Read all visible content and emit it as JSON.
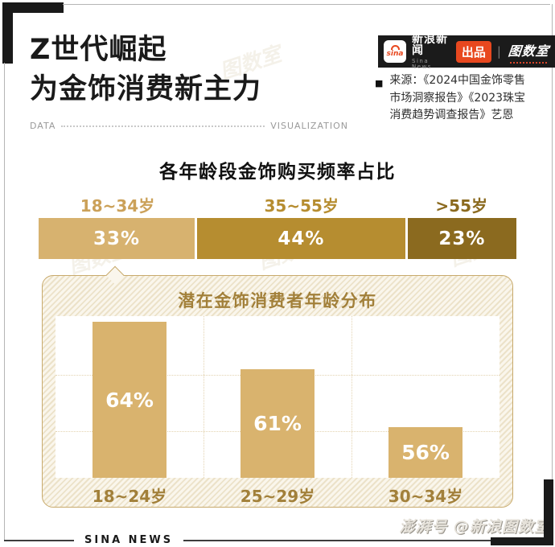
{
  "header": {
    "title_line1": "Z世代崛起",
    "title_line2": "为金饰消费新主力",
    "deco_left": "DATA",
    "deco_right": "VISUALIZATION"
  },
  "brand_bar": {
    "sina_logo_text": "sina",
    "brand_name": "新浪新闻",
    "brand_sub": "Sina News",
    "badge_label": "出品",
    "separator": "|",
    "studio_logo_text": "图数室"
  },
  "source_note": {
    "bullet": "■",
    "lines": [
      "来源：《2024中国金饰零售",
      "市场洞察报告》《2023珠宝",
      "消费趋势调查报告》艺恩"
    ]
  },
  "chart_data": [
    {
      "type": "bar",
      "variant": "horizontal-stacked-100pct",
      "title": "各年龄段金饰购买频率占比",
      "categories": [
        "18~34岁",
        "35~55岁",
        ">55岁"
      ],
      "values": [
        33,
        44,
        23
      ],
      "values_display": [
        "33%",
        "44%",
        "23%"
      ],
      "unit": "%",
      "segment_colors": [
        "#D7B26F",
        "#B68D30",
        "#8B6A1F"
      ],
      "label_colors": [
        "#CBA159",
        "#B68D30",
        "#8B6A1F"
      ]
    },
    {
      "type": "bar",
      "variant": "vertical",
      "title": "潜在金饰消费者年龄分布",
      "categories": [
        "18~24岁",
        "25~29岁",
        "30~34岁"
      ],
      "values": [
        64,
        61,
        56
      ],
      "values_display": [
        "64%",
        "61%",
        "56%"
      ],
      "unit": "%",
      "bar_color": "#D9B36E",
      "grid": "dotted",
      "ylim": [
        0,
        100
      ],
      "legend": "none"
    }
  ],
  "footer": {
    "brand": "SINA NEWS"
  },
  "watermarks": {
    "credit_handle": "澎湃号 @新浪图数室",
    "stamp_text": "图数室"
  },
  "colors": {
    "accent_gold": "#B68D30",
    "panel_border": "#C8AA6C",
    "badge_red": "#E8481F",
    "ink": "#1A1A1A"
  }
}
